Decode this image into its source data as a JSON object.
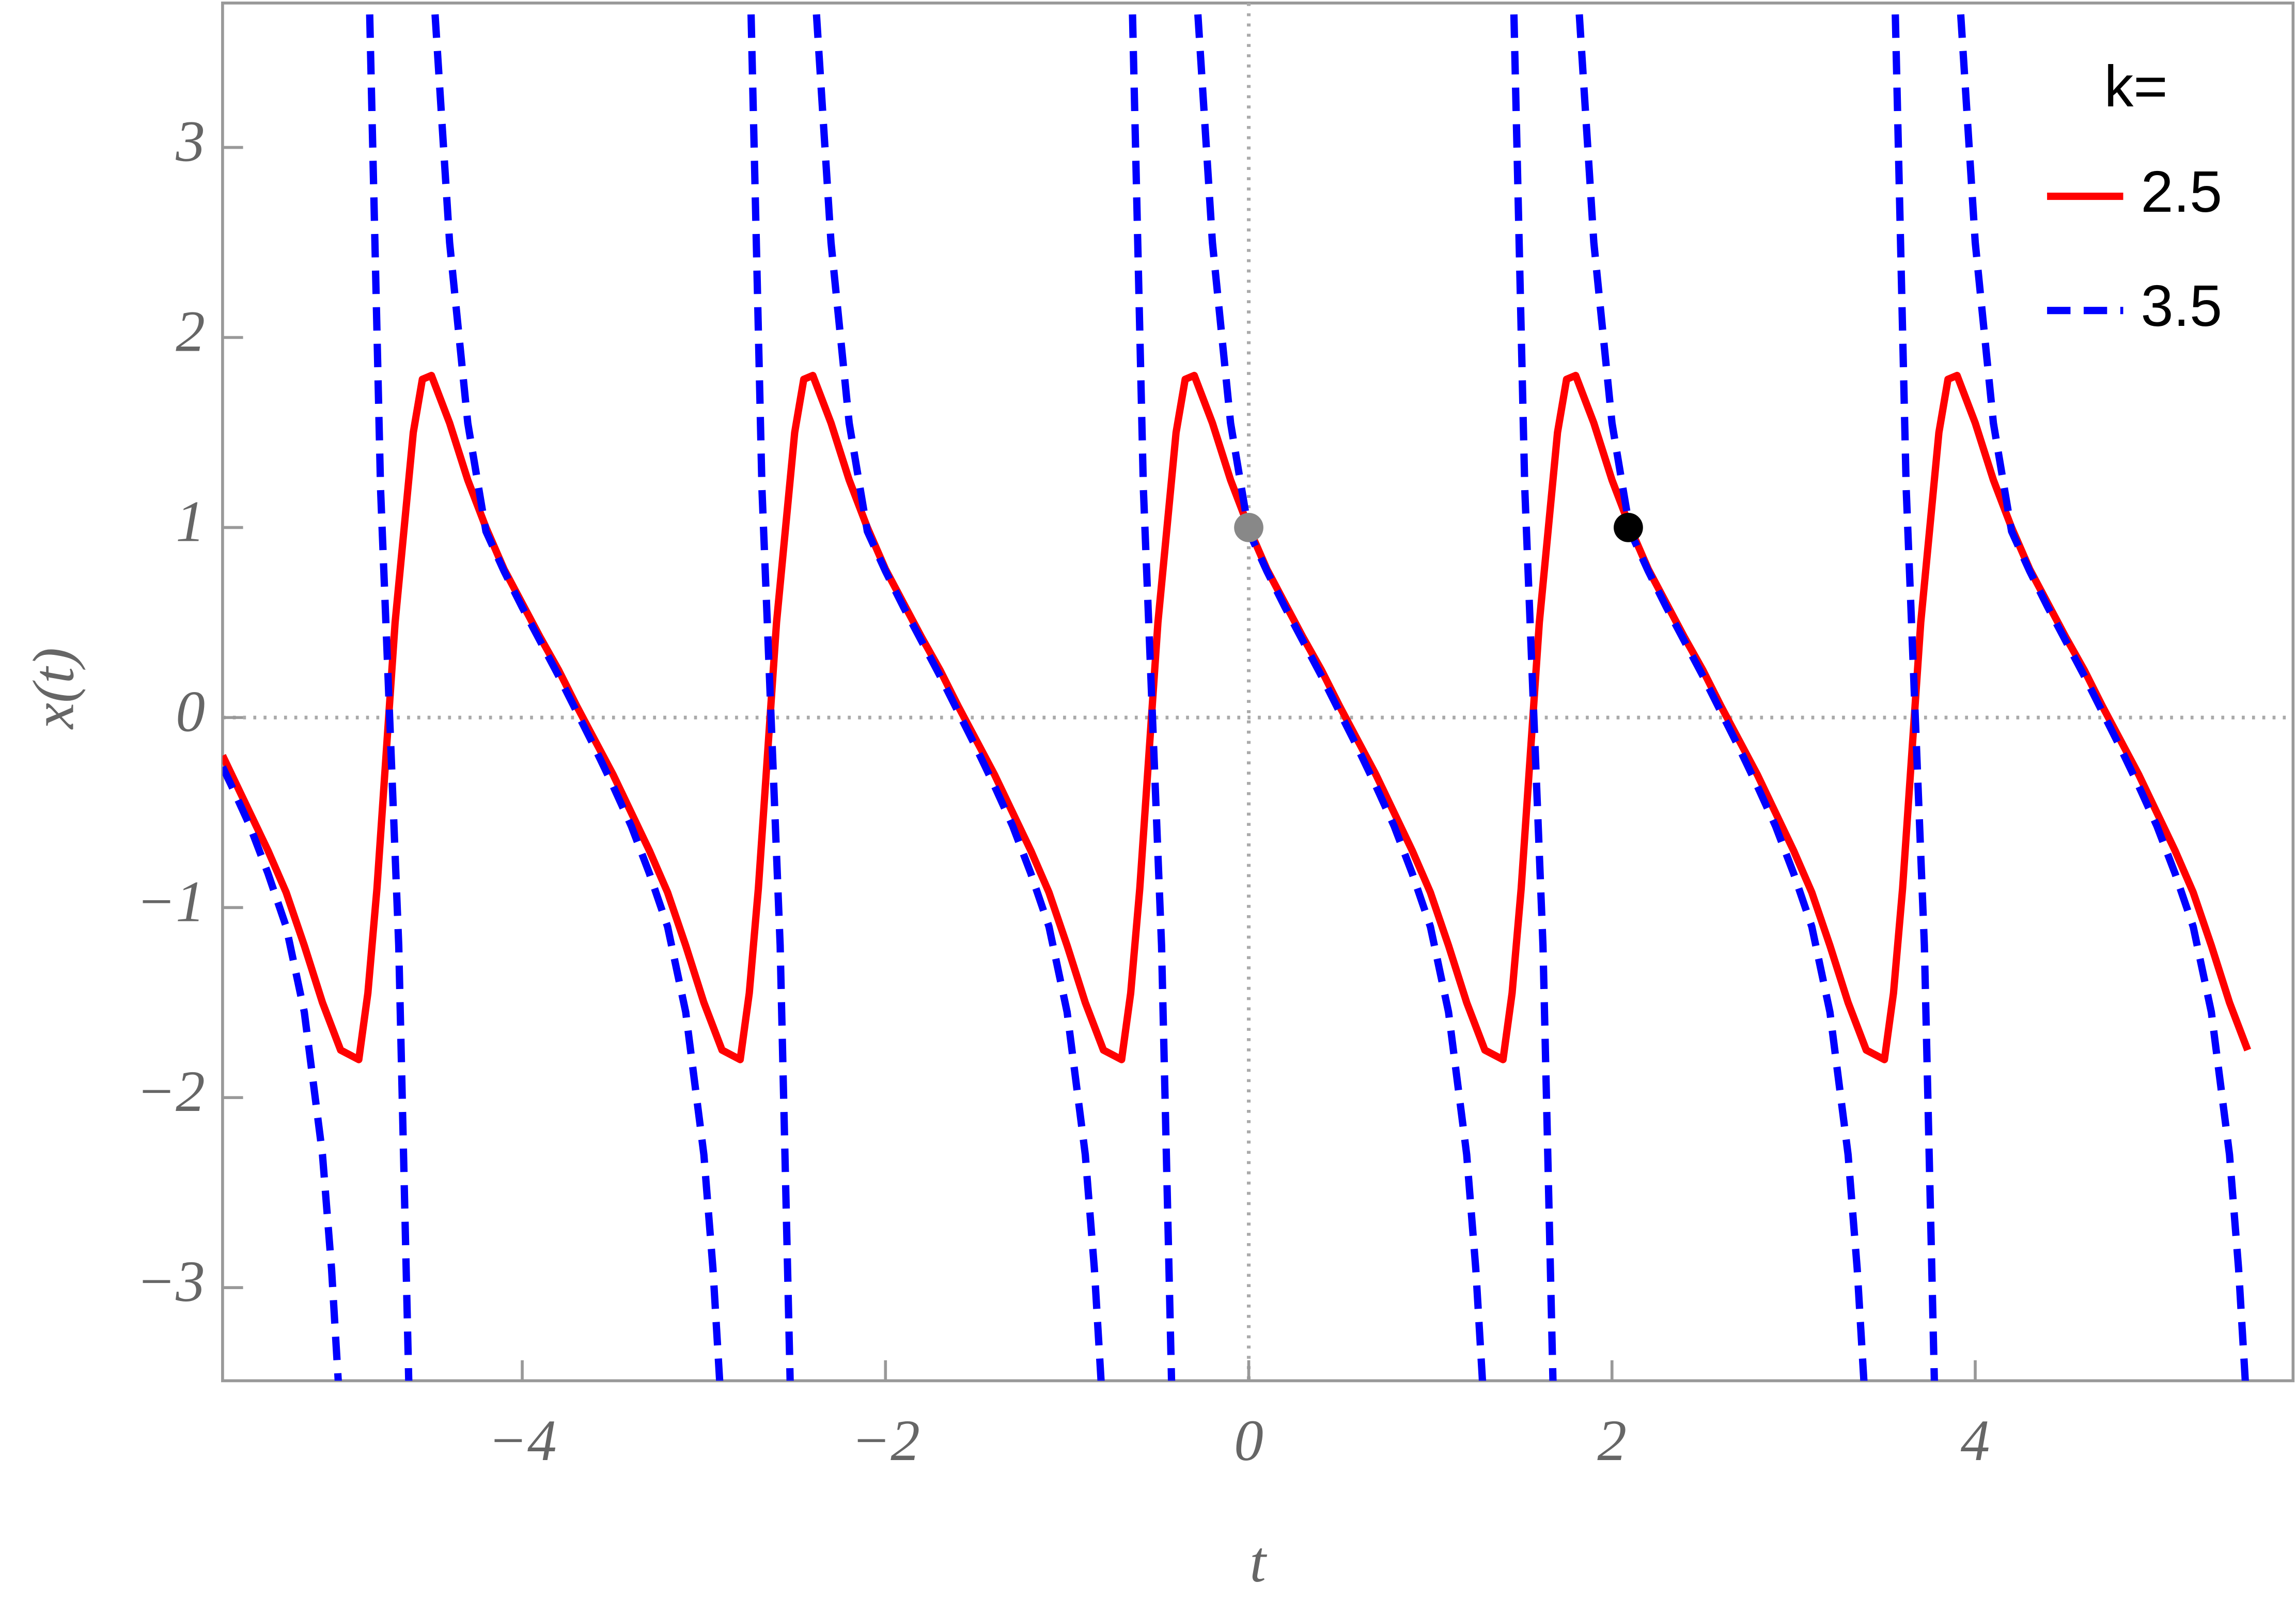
{
  "chart_data": {
    "type": "line",
    "x_label": "t",
    "y_label": "x(t)",
    "xlim": [
      -5.65,
      5.75
    ],
    "ylim": [
      -3.49,
      3.76
    ],
    "xticks": [
      {
        "value": -4,
        "label": "−4"
      },
      {
        "value": -2,
        "label": "−2"
      },
      0,
      2,
      4
    ],
    "yticks": [
      {
        "value": -3,
        "label": "−3"
      },
      {
        "value": -2,
        "label": "−2"
      },
      {
        "value": -1,
        "label": "−1"
      },
      0,
      1,
      2,
      3
    ],
    "legend_title": "k=",
    "legend": "top-right",
    "series": [
      {
        "name": "2.5",
        "color": "#ff0000",
        "dash": false,
        "x": [
          -5.65,
          -5.6,
          -5.5,
          -5.4,
          -5.3,
          -5.2,
          -5.1,
          -5.0,
          -4.9,
          -4.85,
          -4.8,
          -4.75,
          -4.7,
          -4.6,
          -4.55,
          -4.5,
          -4.4,
          -4.3,
          -4.2,
          -4.1,
          -4.0,
          -3.9,
          -3.8,
          -3.7,
          -3.6,
          -3.5,
          -3.4,
          -3.3,
          -3.2,
          -3.1,
          -3.0,
          -2.9,
          -2.8,
          -2.75,
          -2.7,
          -2.65,
          -2.6,
          -2.5,
          -2.45,
          -2.4,
          -2.3,
          -2.2,
          -2.1,
          -2.0,
          -1.9,
          -1.8,
          -1.7,
          -1.6,
          -1.5,
          -1.4,
          -1.3,
          -1.2,
          -1.1,
          -1.0,
          -0.9,
          -0.8,
          -0.7,
          -0.65,
          -0.6,
          -0.55,
          -0.5,
          -0.4,
          -0.35,
          -0.3,
          -0.2,
          -0.1,
          0,
          0.1,
          0.2,
          0.3,
          0.4,
          0.5,
          0.6,
          0.7,
          0.8,
          0.9,
          1.0,
          1.1,
          1.2,
          1.3,
          1.4,
          1.45,
          1.5,
          1.55,
          1.6,
          1.7,
          1.75,
          1.8,
          1.9,
          2.0,
          2.1,
          2.2,
          2.3,
          2.4,
          2.5,
          2.6,
          2.7,
          2.8,
          2.9,
          3.0,
          3.1,
          3.2,
          3.3,
          3.4,
          3.5,
          3.55,
          3.6,
          3.65,
          3.7,
          3.8,
          3.85,
          3.9,
          4.0,
          4.1,
          4.2,
          4.3,
          4.4,
          4.5,
          4.6,
          4.7,
          4.8,
          4.9,
          5.0,
          5.1,
          5.2,
          5.3,
          5.4,
          5.5
        ],
        "values": [
          -0.2,
          -0.3,
          -0.5,
          -0.7,
          -0.92,
          -1.2,
          -1.5,
          -1.75,
          -1.8,
          -1.45,
          -0.9,
          -0.2,
          0.5,
          1.5,
          1.78,
          1.8,
          1.55,
          1.25,
          1.0,
          0.78,
          0.6,
          0.42,
          0.25,
          0.06,
          -0.12,
          -0.3,
          -0.5,
          -0.7,
          -0.92,
          -1.2,
          -1.5,
          -1.75,
          -1.8,
          -1.45,
          -0.9,
          -0.2,
          0.5,
          1.5,
          1.78,
          1.8,
          1.55,
          1.25,
          1.0,
          0.78,
          0.6,
          0.42,
          0.25,
          0.06,
          -0.12,
          -0.3,
          -0.5,
          -0.7,
          -0.92,
          -1.2,
          -1.5,
          -1.75,
          -1.8,
          -1.45,
          -0.9,
          -0.2,
          0.5,
          1.5,
          1.78,
          1.8,
          1.55,
          1.25,
          1.0,
          0.78,
          0.6,
          0.42,
          0.25,
          0.06,
          -0.12,
          -0.3,
          -0.5,
          -0.7,
          -0.92,
          -1.2,
          -1.5,
          -1.75,
          -1.8,
          -1.45,
          -0.9,
          -0.2,
          0.5,
          1.5,
          1.78,
          1.8,
          1.55,
          1.25,
          1.0,
          0.78,
          0.6,
          0.42,
          0.25,
          0.06,
          -0.12,
          -0.3,
          -0.5,
          -0.7,
          -0.92,
          -1.2,
          -1.5,
          -1.75,
          -1.8,
          -1.45,
          -0.9,
          -0.2,
          0.5,
          1.5,
          1.78,
          1.8,
          1.55,
          1.25,
          1.0,
          0.78,
          0.6,
          0.42,
          0.25,
          0.06,
          -0.12,
          -0.3,
          -0.5,
          -0.7,
          -0.92,
          -1.2,
          -1.5,
          -1.75
        ]
      },
      {
        "name": "3.5",
        "color": "#0000ff",
        "dash": true,
        "x": [
          -5.65,
          -5.6,
          -5.5,
          -5.4,
          -5.3,
          -5.2,
          -5.1,
          -5.05,
          -5.0,
          -4.92,
          -4.84,
          -4.78,
          -4.73,
          -4.68,
          -4.62,
          -4.54,
          -4.48,
          -4.4,
          -4.3,
          -4.2,
          -4.1,
          -4.0,
          -3.9,
          -3.8,
          -3.7,
          -3.6,
          -3.5,
          -3.4,
          -3.3,
          -3.2,
          -3.1,
          -3.0,
          -2.95,
          -2.9,
          -2.82,
          -2.74,
          -2.68,
          -2.63,
          -2.58,
          -2.52,
          -2.44,
          -2.38,
          -2.3,
          -2.2,
          -2.1,
          -2.0,
          -1.9,
          -1.8,
          -1.7,
          -1.6,
          -1.5,
          -1.4,
          -1.3,
          -1.2,
          -1.1,
          -1.0,
          -0.9,
          -0.85,
          -0.8,
          -0.72,
          -0.64,
          -0.58,
          -0.53,
          -0.48,
          -0.42,
          -0.34,
          -0.28,
          -0.2,
          -0.1,
          0,
          0.1,
          0.2,
          0.3,
          0.4,
          0.5,
          0.6,
          0.7,
          0.8,
          0.9,
          1.0,
          1.1,
          1.2,
          1.25,
          1.3,
          1.38,
          1.46,
          1.52,
          1.57,
          1.62,
          1.68,
          1.76,
          1.82,
          1.9,
          2.0,
          2.1,
          2.2,
          2.3,
          2.4,
          2.5,
          2.6,
          2.7,
          2.8,
          2.9,
          3.0,
          3.1,
          3.2,
          3.3,
          3.35,
          3.4,
          3.48,
          3.56,
          3.62,
          3.67,
          3.72,
          3.78,
          3.86,
          3.92,
          4.0,
          4.1,
          4.2,
          4.3,
          4.4,
          4.5,
          4.6,
          4.7,
          4.8,
          4.9,
          5.0,
          5.1,
          5.2,
          5.3,
          5.4,
          5.45,
          5.5
        ],
        "values": [
          -0.26,
          -0.36,
          -0.57,
          -0.82,
          -1.1,
          -1.55,
          -2.3,
          -2.9,
          -3.7,
          null,
          3.7,
          1.2,
          0,
          -1.2,
          -3.7,
          null,
          3.7,
          2.5,
          1.55,
          0.98,
          0.77,
          0.58,
          0.4,
          0.22,
          0.03,
          -0.16,
          -0.36,
          -0.57,
          -0.82,
          -1.1,
          -1.55,
          -2.3,
          -2.9,
          -3.7,
          null,
          3.7,
          1.2,
          0,
          -1.2,
          -3.7,
          null,
          3.7,
          2.5,
          1.55,
          0.98,
          0.77,
          0.58,
          0.4,
          0.22,
          0.03,
          -0.16,
          -0.36,
          -0.57,
          -0.82,
          -1.1,
          -1.55,
          -2.3,
          -2.9,
          -3.7,
          null,
          3.7,
          1.2,
          0,
          -1.2,
          -3.7,
          null,
          3.7,
          2.5,
          1.55,
          0.98,
          0.77,
          0.58,
          0.4,
          0.22,
          0.03,
          -0.16,
          -0.36,
          -0.57,
          -0.82,
          -1.1,
          -1.55,
          -2.3,
          -2.9,
          -3.7,
          null,
          3.7,
          1.2,
          0,
          -1.2,
          -3.7,
          null,
          3.7,
          2.5,
          1.55,
          0.98,
          0.77,
          0.58,
          0.4,
          0.22,
          0.03,
          -0.16,
          -0.36,
          -0.57,
          -0.82,
          -1.1,
          -1.55,
          -2.3,
          -2.9,
          -3.7,
          null,
          3.7,
          1.2,
          0,
          -1.2,
          -3.7,
          null,
          3.7,
          2.5,
          1.55,
          0.98,
          0.77,
          0.58,
          0.4,
          0.22,
          0.03,
          -0.16,
          -0.36,
          -0.57,
          -0.82,
          -1.1,
          -1.55,
          -2.3,
          -2.9,
          -3.7
        ]
      }
    ],
    "points": [
      {
        "x": 0,
        "y": 1,
        "color": "#888888"
      },
      {
        "x": 2.09,
        "y": 1,
        "color": "#000000"
      }
    ]
  }
}
